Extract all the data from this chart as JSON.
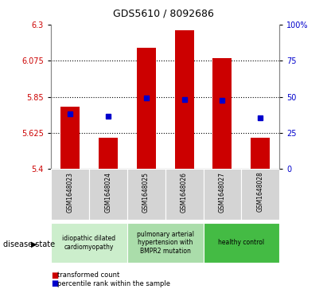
{
  "title": "GDS5610 / 8092686",
  "samples": [
    "GSM1648023",
    "GSM1648024",
    "GSM1648025",
    "GSM1648026",
    "GSM1648027",
    "GSM1648028"
  ],
  "bar_values": [
    5.79,
    5.595,
    6.155,
    6.265,
    6.09,
    5.595
  ],
  "bar_bottom": 5.4,
  "blue_marker_values": [
    5.745,
    5.73,
    5.845,
    5.835,
    5.83,
    5.72
  ],
  "ylim_left": [
    5.4,
    6.3
  ],
  "ylim_right": [
    0,
    100
  ],
  "yticks_left": [
    5.4,
    5.625,
    5.85,
    6.075,
    6.3
  ],
  "yticks_right": [
    0,
    25,
    50,
    75,
    100
  ],
  "hlines": [
    5.625,
    5.85,
    6.075
  ],
  "bar_color": "#CC0000",
  "marker_color": "#0000CC",
  "group_data": [
    {
      "indices": [
        0,
        1
      ],
      "color": "#cceecc",
      "label": "idiopathic dilated\ncardiomyopathy"
    },
    {
      "indices": [
        2,
        3
      ],
      "color": "#aaddaa",
      "label": "pulmonary arterial\nhypertension with\nBMPR2 mutation"
    },
    {
      "indices": [
        4,
        5
      ],
      "color": "#44bb44",
      "label": "healthy control"
    }
  ],
  "legend_items": [
    {
      "label": "transformed count",
      "color": "#CC0000"
    },
    {
      "label": "percentile rank within the sample",
      "color": "#0000CC"
    }
  ],
  "disease_state_label": "disease state",
  "bar_width": 0.5
}
